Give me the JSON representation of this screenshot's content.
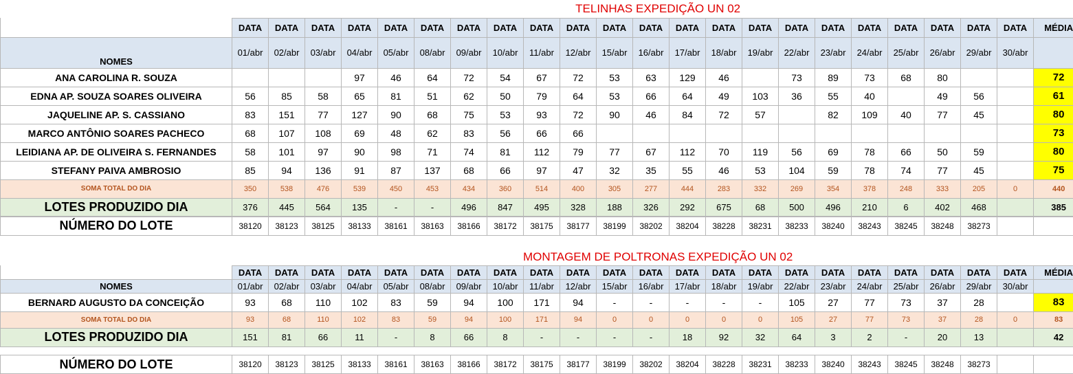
{
  "section1": {
    "title": "TELINHAS EXPEDIÇÃO UN 02",
    "data_label": "DATA",
    "media_label": "MÉDIA",
    "nomes_label": "NOMES",
    "dates": [
      "01/abr",
      "02/abr",
      "03/abr",
      "04/abr",
      "05/abr",
      "08/abr",
      "09/abr",
      "10/abr",
      "11/abr",
      "12/abr",
      "15/abr",
      "16/abr",
      "17/abr",
      "18/abr",
      "19/abr",
      "22/abr",
      "23/abr",
      "24/abr",
      "25/abr",
      "26/abr",
      "29/abr",
      "30/abr"
    ],
    "rows": [
      {
        "name": "ANA CAROLINA R. SOUZA",
        "values": [
          "",
          "",
          "",
          "97",
          "46",
          "64",
          "72",
          "54",
          "67",
          "72",
          "53",
          "63",
          "129",
          "46",
          "",
          "73",
          "89",
          "73",
          "68",
          "80",
          "",
          ""
        ],
        "media": "72"
      },
      {
        "name": "EDNA AP. SOUZA SOARES OLIVEIRA",
        "values": [
          "56",
          "85",
          "58",
          "65",
          "81",
          "51",
          "62",
          "50",
          "79",
          "64",
          "53",
          "66",
          "64",
          "49",
          "103",
          "36",
          "55",
          "40",
          "",
          "49",
          "56",
          ""
        ],
        "media": "61"
      },
      {
        "name": "JAQUELINE AP.  S. CASSIANO",
        "values": [
          "83",
          "151",
          "77",
          "127",
          "90",
          "68",
          "75",
          "53",
          "93",
          "72",
          "90",
          "46",
          "84",
          "72",
          "57",
          "",
          "82",
          "109",
          "40",
          "77",
          "45",
          ""
        ],
        "media": "80"
      },
      {
        "name": "MARCO ANTÔNIO SOARES PACHECO",
        "values": [
          "68",
          "107",
          "108",
          "69",
          "48",
          "62",
          "83",
          "56",
          "66",
          "66",
          "",
          "",
          "",
          "",
          "",
          "",
          "",
          "",
          "",
          "",
          "",
          ""
        ],
        "media": "73"
      },
      {
        "name": "LEIDIANA AP. DE OLIVEIRA S. FERNANDES",
        "values": [
          "58",
          "101",
          "97",
          "90",
          "98",
          "71",
          "74",
          "81",
          "112",
          "79",
          "77",
          "67",
          "112",
          "70",
          "119",
          "56",
          "69",
          "78",
          "66",
          "50",
          "59",
          ""
        ],
        "media": "80"
      },
      {
        "name": "STEFANY PAIVA AMBROSIO",
        "values": [
          "85",
          "94",
          "136",
          "91",
          "87",
          "137",
          "68",
          "66",
          "97",
          "47",
          "32",
          "35",
          "55",
          "46",
          "53",
          "104",
          "59",
          "78",
          "74",
          "77",
          "45",
          ""
        ],
        "media": "75"
      }
    ],
    "soma": {
      "label": "SOMA TOTAL DO DIA",
      "values": [
        "350",
        "538",
        "476",
        "539",
        "450",
        "453",
        "434",
        "360",
        "514",
        "400",
        "305",
        "277",
        "444",
        "283",
        "332",
        "269",
        "354",
        "378",
        "248",
        "333",
        "205",
        "0"
      ],
      "media": "440"
    },
    "lotes": {
      "label": "LOTES PRODUZIDO DIA",
      "values": [
        "376",
        "445",
        "564",
        "135",
        "-",
        "-",
        "496",
        "847",
        "495",
        "328",
        "188",
        "326",
        "292",
        "675",
        "68",
        "500",
        "496",
        "210",
        "6",
        "402",
        "468",
        ""
      ],
      "media": "385"
    },
    "numero": {
      "label": "NÚMERO DO LOTE",
      "values": [
        "38120",
        "38123",
        "38125",
        "38133",
        "38161",
        "38163",
        "38166",
        "38172",
        "38175",
        "38177",
        "38199",
        "38202",
        "38204",
        "38228",
        "38231",
        "38233",
        "38240",
        "38243",
        "38245",
        "38248",
        "38273",
        ""
      ]
    }
  },
  "section2": {
    "title": "MONTAGEM DE POLTRONAS EXPEDIÇÃO UN 02",
    "data_label": "DATA",
    "media_label": "MÉDIA",
    "nomes_label": "NOMES",
    "dates": [
      "01/abr",
      "02/abr",
      "03/abr",
      "04/abr",
      "05/abr",
      "08/abr",
      "09/abr",
      "10/abr",
      "11/abr",
      "12/abr",
      "15/abr",
      "16/abr",
      "17/abr",
      "18/abr",
      "19/abr",
      "22/abr",
      "23/abr",
      "24/abr",
      "25/abr",
      "26/abr",
      "29/abr",
      "30/abr"
    ],
    "rows": [
      {
        "name": "BERNARD AUGUSTO DA CONCEIÇÃO",
        "values": [
          "93",
          "68",
          "110",
          "102",
          "83",
          "59",
          "94",
          "100",
          "171",
          "94",
          "-",
          "-",
          "-",
          "-",
          "-",
          "105",
          "27",
          "77",
          "73",
          "37",
          "28",
          ""
        ],
        "media": "83"
      }
    ],
    "soma": {
      "label": "SOMA TOTAL DO DIA",
      "values": [
        "93",
        "68",
        "110",
        "102",
        "83",
        "59",
        "94",
        "100",
        "171",
        "94",
        "0",
        "0",
        "0",
        "0",
        "0",
        "105",
        "27",
        "77",
        "73",
        "37",
        "28",
        "0"
      ],
      "media": "83"
    },
    "lotes": {
      "label": "LOTES PRODUZIDO DIA",
      "values": [
        "151",
        "81",
        "66",
        "11",
        "-",
        "8",
        "66",
        "8",
        "-",
        "-",
        "-",
        "-",
        "18",
        "92",
        "32",
        "64",
        "3",
        "2",
        "-",
        "20",
        "13",
        ""
      ],
      "media": "42"
    },
    "numero": {
      "label": "NÚMERO DO LOTE",
      "values": [
        "38120",
        "38123",
        "38125",
        "38133",
        "38161",
        "38163",
        "38166",
        "38172",
        "38175",
        "38177",
        "38199",
        "38202",
        "38204",
        "38228",
        "38231",
        "38233",
        "38240",
        "38243",
        "38245",
        "38248",
        "38273",
        ""
      ]
    }
  }
}
